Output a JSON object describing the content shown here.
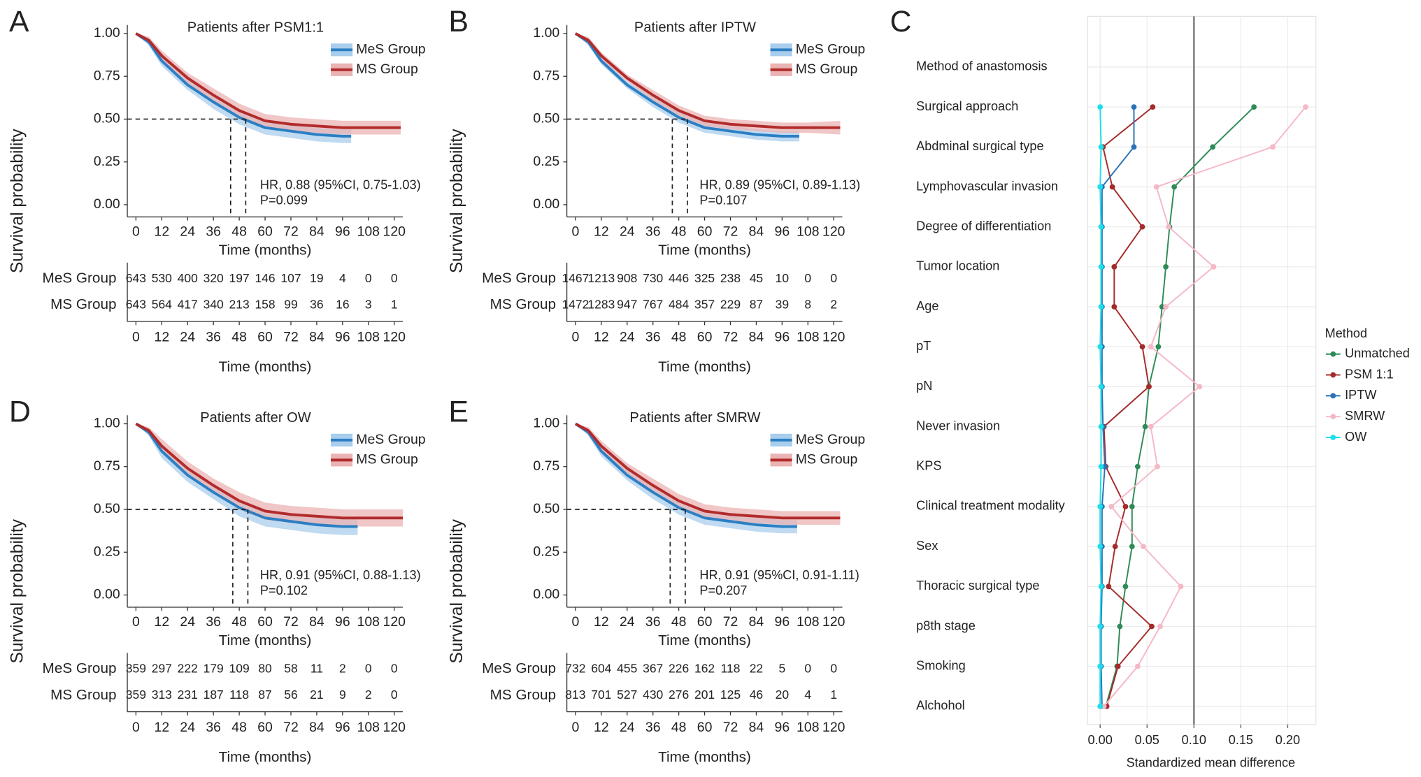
{
  "chart_data": [
    {
      "type": "survival",
      "panel": "A",
      "title": "Patients after PSM1:1",
      "xlabel": "Time (months)",
      "ylabel": "Survival probability",
      "xlim": [
        -4,
        124
      ],
      "ylim": [
        -0.05,
        1.05
      ],
      "xticks": [
        0,
        12,
        24,
        36,
        48,
        60,
        72,
        84,
        96,
        108,
        120
      ],
      "yticks": [
        {
          "value": 0,
          "label": "0.00"
        },
        0.25,
        {
          "value": 0.5,
          "label": "0.50"
        },
        0.75,
        {
          "value": 1,
          "label": "1.00"
        }
      ],
      "median_y": 0.5,
      "medians": [
        44,
        51
      ],
      "annotations": [
        "HR, 0.88 (95%CI, 0.75-1.03)",
        "P=0.099"
      ],
      "series": [
        {
          "name": "MeS Group",
          "color": "#2b7fc3",
          "band_color": "#a9cdec",
          "risk_color": "#b83232",
          "x": [
            0,
            6,
            12,
            24,
            36,
            48,
            60,
            72,
            84,
            96,
            100
          ],
          "values": [
            1,
            0.95,
            0.84,
            0.7,
            0.6,
            0.51,
            0.45,
            0.43,
            0.41,
            0.4,
            0.4
          ],
          "lower": [
            1,
            0.93,
            0.81,
            0.67,
            0.56,
            0.47,
            0.41,
            0.39,
            0.37,
            0.36,
            0.36
          ],
          "upper": [
            1,
            0.97,
            0.87,
            0.73,
            0.64,
            0.55,
            0.49,
            0.47,
            0.45,
            0.44,
            0.44
          ],
          "at_risk": [
            643,
            530,
            400,
            320,
            197,
            146,
            107,
            19,
            4,
            0,
            0
          ]
        },
        {
          "name": "MS Group",
          "color": "#b22b2b",
          "band_color": "#ebb3b3",
          "risk_color": "#2b8ac9",
          "x": [
            0,
            6,
            12,
            24,
            36,
            48,
            60,
            72,
            84,
            96,
            108,
            123
          ],
          "values": [
            1,
            0.96,
            0.87,
            0.74,
            0.64,
            0.55,
            0.49,
            0.47,
            0.46,
            0.45,
            0.45,
            0.45
          ],
          "lower": [
            1,
            0.94,
            0.84,
            0.71,
            0.6,
            0.51,
            0.45,
            0.43,
            0.42,
            0.41,
            0.41,
            0.41
          ],
          "upper": [
            1,
            0.98,
            0.9,
            0.77,
            0.68,
            0.59,
            0.53,
            0.51,
            0.5,
            0.49,
            0.49,
            0.49
          ],
          "at_risk": [
            643,
            564,
            417,
            340,
            213,
            158,
            99,
            36,
            16,
            3,
            1
          ]
        }
      ]
    },
    {
      "type": "survival",
      "panel": "B",
      "title": "Patients after IPTW",
      "xlabel": "Time (months)",
      "ylabel": "Survival probability",
      "xlim": [
        -4,
        124
      ],
      "ylim": [
        -0.05,
        1.05
      ],
      "xticks": [
        0,
        12,
        24,
        36,
        48,
        60,
        72,
        84,
        96,
        108,
        120
      ],
      "yticks": [
        {
          "value": 0,
          "label": "0.00"
        },
        0.25,
        {
          "value": 0.5,
          "label": "0.50"
        },
        0.75,
        {
          "value": 1,
          "label": "1.00"
        }
      ],
      "median_y": 0.5,
      "medians": [
        45,
        52
      ],
      "annotations": [
        "HR, 0.89 (95%CI, 0.89-1.13)",
        "P=0.107"
      ],
      "series": [
        {
          "name": "MeS Group",
          "color": "#2b7fc3",
          "band_color": "#a9cdec",
          "risk_color": "#b83232",
          "x": [
            0,
            6,
            12,
            24,
            36,
            48,
            60,
            72,
            84,
            96,
            104
          ],
          "values": [
            1,
            0.95,
            0.84,
            0.7,
            0.6,
            0.51,
            0.45,
            0.43,
            0.41,
            0.4,
            0.4
          ],
          "lower": [
            1,
            0.93,
            0.82,
            0.68,
            0.57,
            0.48,
            0.42,
            0.4,
            0.38,
            0.37,
            0.37
          ],
          "upper": [
            1,
            0.97,
            0.86,
            0.72,
            0.63,
            0.54,
            0.48,
            0.46,
            0.44,
            0.43,
            0.43
          ],
          "at_risk": [
            1467,
            1213,
            908,
            730,
            446,
            325,
            238,
            45,
            10,
            0,
            0
          ]
        },
        {
          "name": "MS Group",
          "color": "#b22b2b",
          "band_color": "#ebb3b3",
          "risk_color": "#2b8ac9",
          "x": [
            0,
            6,
            12,
            24,
            36,
            48,
            60,
            72,
            84,
            96,
            108,
            123
          ],
          "values": [
            1,
            0.96,
            0.87,
            0.74,
            0.64,
            0.55,
            0.49,
            0.47,
            0.46,
            0.45,
            0.45,
            0.45
          ],
          "lower": [
            1,
            0.94,
            0.85,
            0.72,
            0.61,
            0.52,
            0.46,
            0.44,
            0.43,
            0.42,
            0.42,
            0.41
          ],
          "upper": [
            1,
            0.98,
            0.89,
            0.76,
            0.67,
            0.58,
            0.52,
            0.5,
            0.49,
            0.48,
            0.48,
            0.49
          ],
          "at_risk": [
            1472,
            1283,
            947,
            767,
            484,
            357,
            229,
            87,
            39,
            8,
            2
          ]
        }
      ]
    },
    {
      "type": "dot-line",
      "panel": "C",
      "xlabel": "Standardized mean difference",
      "legend_title": "Method",
      "xlim": [
        -0.0135,
        0.23
      ],
      "xticks": [
        {
          "value": 0,
          "label": "0.00"
        },
        0.05,
        {
          "value": 0.1,
          "label": "0.10"
        },
        0.15,
        {
          "value": 0.2,
          "label": "0.20"
        }
      ],
      "reference_line": 0.1,
      "categories": [
        "Method of anastomosis",
        "Surgical approach",
        "Abdminal surgical type",
        "Lymphovascular invasion",
        "Degree of differentiation",
        "Tumor location",
        "Age",
        "pT",
        "pN",
        "Never invasion",
        "KPS",
        "Clinical treatment modality",
        "Sex",
        "Thoracic surgical type",
        "p8th stage",
        "Smoking",
        "Alchohol"
      ],
      "series": [
        {
          "name": "Unmatched",
          "color": "#2e8b57",
          "values": [
            null,
            0.164,
            0.12,
            0.079,
            0.074,
            0.07,
            0.066,
            0.062,
            0.052,
            0.048,
            0.04,
            0.034,
            0.034,
            0.027,
            0.021,
            0.018,
            0.006
          ]
        },
        {
          "name": "PSM 1:1",
          "color": "#a52a2a",
          "values": [
            null,
            0.056,
            0.003,
            0.013,
            0.045,
            0.015,
            0.015,
            0.045,
            0.052,
            0.004,
            0.006,
            0.027,
            0.016,
            0.009,
            0.055,
            0.019,
            0.007
          ]
        },
        {
          "name": "IPTW",
          "color": "#2a72b5",
          "values": [
            null,
            0.036,
            0.036,
            0.002,
            0.002,
            0.002,
            0.002,
            0.002,
            0.002,
            0.003,
            0.005,
            0.002,
            0.002,
            0.002,
            0.001,
            0.001,
            0.002
          ]
        },
        {
          "name": "SMRW",
          "color": "#f5b8c6",
          "values": [
            null,
            0.219,
            0.184,
            0.06,
            0.073,
            0.121,
            0.07,
            0.054,
            0.106,
            0.054,
            0.061,
            0.012,
            0.046,
            0.086,
            0.064,
            0.04,
            0.004
          ]
        },
        {
          "name": "OW",
          "color": "#19e0ea",
          "values": [
            null,
            0,
            0.001,
            0,
            0.001,
            0.001,
            0.001,
            0,
            0.001,
            0.001,
            0.001,
            0,
            0,
            0.001,
            0,
            0,
            0
          ]
        }
      ]
    },
    {
      "type": "survival",
      "panel": "D",
      "title": "Patients after OW",
      "xlabel": "Time (months)",
      "ylabel": "Survival probability",
      "xlim": [
        -4,
        124
      ],
      "ylim": [
        -0.05,
        1.05
      ],
      "xticks": [
        0,
        12,
        24,
        36,
        48,
        60,
        72,
        84,
        96,
        108,
        120
      ],
      "yticks": [
        {
          "value": 0,
          "label": "0.00"
        },
        0.25,
        {
          "value": 0.5,
          "label": "0.50"
        },
        0.75,
        {
          "value": 1,
          "label": "1.00"
        }
      ],
      "median_y": 0.5,
      "medians": [
        45,
        52
      ],
      "annotations": [
        "HR, 0.91 (95%CI, 0.88-1.13)",
        "P=0.102"
      ],
      "series": [
        {
          "name": "MeS Group",
          "color": "#2b7fc3",
          "band_color": "#a9cdec",
          "risk_color": "#b83232",
          "x": [
            0,
            6,
            12,
            24,
            36,
            48,
            60,
            72,
            84,
            96,
            103
          ],
          "values": [
            1,
            0.95,
            0.84,
            0.7,
            0.6,
            0.51,
            0.45,
            0.43,
            0.41,
            0.4,
            0.4
          ],
          "lower": [
            1,
            0.93,
            0.8,
            0.66,
            0.56,
            0.46,
            0.4,
            0.38,
            0.36,
            0.35,
            0.35
          ],
          "upper": [
            1,
            0.97,
            0.88,
            0.74,
            0.64,
            0.56,
            0.5,
            0.48,
            0.46,
            0.45,
            0.45
          ],
          "at_risk": [
            359,
            297,
            222,
            179,
            109,
            80,
            58,
            11,
            2,
            0,
            0
          ]
        },
        {
          "name": "MS Group",
          "color": "#b22b2b",
          "band_color": "#ebb3b3",
          "risk_color": "#2b8ac9",
          "x": [
            0,
            6,
            12,
            24,
            36,
            48,
            60,
            72,
            84,
            96,
            108,
            124
          ],
          "values": [
            1,
            0.96,
            0.87,
            0.74,
            0.64,
            0.55,
            0.49,
            0.47,
            0.46,
            0.45,
            0.45,
            0.45
          ],
          "lower": [
            1,
            0.94,
            0.83,
            0.7,
            0.6,
            0.5,
            0.44,
            0.42,
            0.41,
            0.4,
            0.4,
            0.4
          ],
          "upper": [
            1,
            0.98,
            0.91,
            0.78,
            0.68,
            0.6,
            0.54,
            0.52,
            0.51,
            0.5,
            0.5,
            0.5
          ],
          "at_risk": [
            359,
            313,
            231,
            187,
            118,
            87,
            56,
            21,
            9,
            2,
            0
          ]
        }
      ]
    },
    {
      "type": "survival",
      "panel": "E",
      "title": "Patients after SMRW",
      "xlabel": "Time (months)",
      "ylabel": "Survival probability",
      "xlim": [
        -4,
        124
      ],
      "ylim": [
        -0.05,
        1.05
      ],
      "xticks": [
        0,
        12,
        24,
        36,
        48,
        60,
        72,
        84,
        96,
        108,
        120
      ],
      "yticks": [
        {
          "value": 0,
          "label": "0.00"
        },
        0.25,
        {
          "value": 0.5,
          "label": "0.50"
        },
        0.75,
        {
          "value": 1,
          "label": "1.00"
        }
      ],
      "median_y": 0.5,
      "medians": [
        44,
        51
      ],
      "annotations": [
        "HR, 0.91 (95%CI, 0.91-1.11)",
        "P=0.207"
      ],
      "series": [
        {
          "name": "MeS Group",
          "color": "#2b7fc3",
          "band_color": "#a9cdec",
          "risk_color": "#b83232",
          "x": [
            0,
            6,
            12,
            24,
            36,
            48,
            60,
            72,
            84,
            96,
            103
          ],
          "values": [
            1,
            0.95,
            0.84,
            0.7,
            0.6,
            0.51,
            0.45,
            0.43,
            0.41,
            0.4,
            0.4
          ],
          "lower": [
            1,
            0.93,
            0.81,
            0.67,
            0.56,
            0.47,
            0.41,
            0.39,
            0.37,
            0.36,
            0.36
          ],
          "upper": [
            1,
            0.97,
            0.87,
            0.73,
            0.64,
            0.55,
            0.49,
            0.47,
            0.45,
            0.44,
            0.44
          ],
          "at_risk": [
            732,
            604,
            455,
            367,
            226,
            162,
            118,
            22,
            5,
            0,
            0
          ]
        },
        {
          "name": "MS Group",
          "color": "#b22b2b",
          "band_color": "#ebb3b3",
          "risk_color": "#2b8ac9",
          "x": [
            0,
            6,
            12,
            24,
            36,
            48,
            60,
            72,
            84,
            96,
            108,
            123
          ],
          "values": [
            1,
            0.96,
            0.87,
            0.74,
            0.64,
            0.55,
            0.49,
            0.47,
            0.46,
            0.45,
            0.45,
            0.45
          ],
          "lower": [
            1,
            0.94,
            0.84,
            0.71,
            0.6,
            0.51,
            0.45,
            0.43,
            0.42,
            0.41,
            0.41,
            0.41
          ],
          "upper": [
            1,
            0.98,
            0.9,
            0.77,
            0.68,
            0.59,
            0.53,
            0.51,
            0.5,
            0.49,
            0.49,
            0.49
          ],
          "at_risk": [
            813,
            701,
            527,
            430,
            276,
            201,
            125,
            46,
            20,
            4,
            1
          ]
        }
      ]
    }
  ]
}
